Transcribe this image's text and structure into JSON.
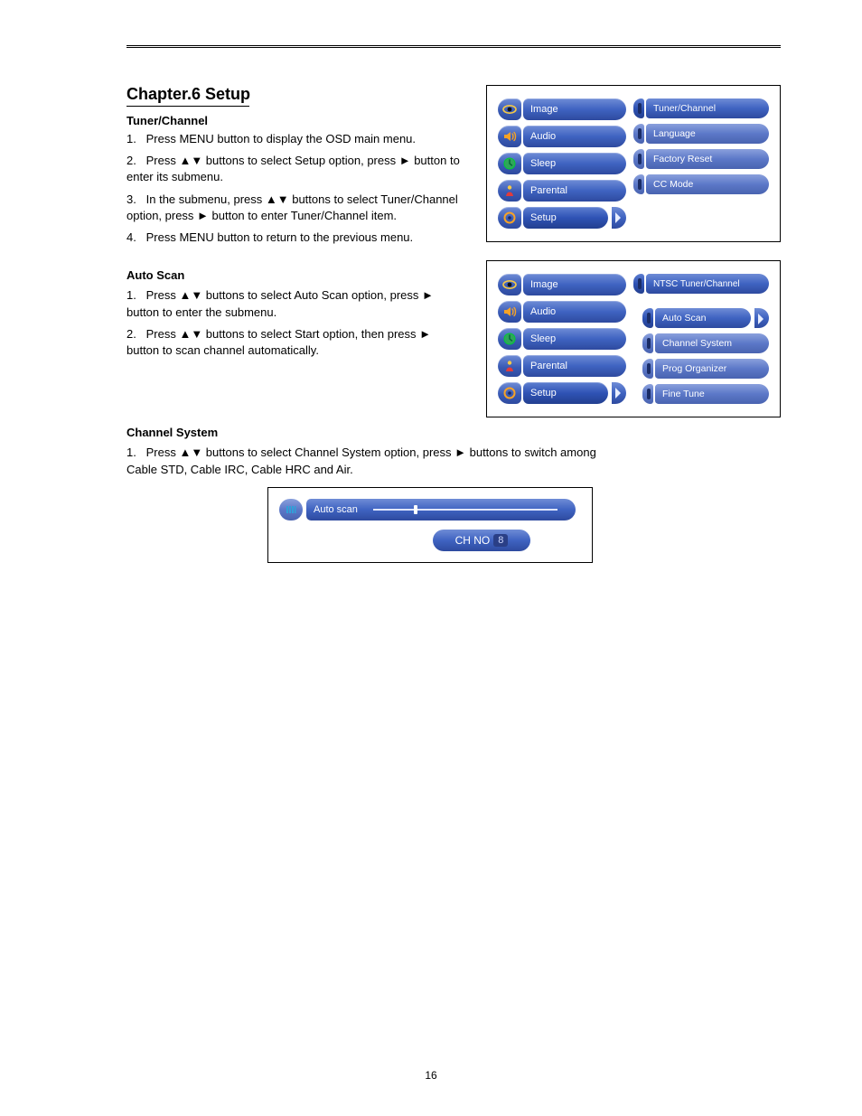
{
  "page": {
    "chapter_title": "Chapter.6 Setup",
    "page_number": "16",
    "arrow_glyph": "▲▼"
  },
  "tuner_channel": {
    "title": "Tuner/Channel",
    "steps": [
      "Press MENU button to display the OSD main menu.",
      "Press ▲▼ buttons to select Setup option, press ► button to enter its submenu.",
      "In the submenu, press ▲▼ buttons to select Tuner/Channel option, press ► button to enter Tuner/Channel item.",
      "Press MENU button to return to the previous menu."
    ]
  },
  "auto_scan": {
    "title": "Auto Scan",
    "steps": [
      "Press ▲▼ buttons to select Auto Scan option, press ► button to enter the submenu.",
      "Press ▲▼ buttons to select Start option, then press ► button to scan channel automatically."
    ]
  },
  "channel_system": {
    "title": "Channel System",
    "steps": [
      "Press ▲▼ buttons to select Channel System option, press ► buttons to switch among Cable STD, Cable IRC, Cable HRC and Air."
    ]
  },
  "menu1": {
    "left": [
      {
        "label": "Image",
        "icon": "eye"
      },
      {
        "label": "Audio",
        "icon": "speaker"
      },
      {
        "label": "Sleep",
        "icon": "clock"
      },
      {
        "label": "Parental",
        "icon": "person"
      },
      {
        "label": "Setup",
        "icon": "gear",
        "selected": true
      }
    ],
    "right": [
      {
        "label": "Tuner/Channel"
      },
      {
        "label": "Language"
      },
      {
        "label": "Factory Reset"
      },
      {
        "label": "CC Mode"
      }
    ],
    "colors": {
      "pill_bg": "#3f63c1",
      "pill_dim": "#5c78c8",
      "text": "#ffffff"
    }
  },
  "menu2": {
    "left": [
      {
        "label": "Image",
        "icon": "eye"
      },
      {
        "label": "Audio",
        "icon": "speaker"
      },
      {
        "label": "Sleep",
        "icon": "clock"
      },
      {
        "label": "Parental",
        "icon": "person"
      },
      {
        "label": "Setup",
        "icon": "gear",
        "selected": true
      }
    ],
    "header": "NTSC Tuner/Channel",
    "right": [
      {
        "label": "Auto Scan",
        "selected": true
      },
      {
        "label": "Channel System"
      },
      {
        "label": "Prog Organizer"
      },
      {
        "label": "Fine Tune"
      }
    ]
  },
  "autoscan_bar": {
    "label": "Auto scan",
    "progress_pct": 22,
    "chno_label": "CH NO",
    "chno_value": "8"
  }
}
